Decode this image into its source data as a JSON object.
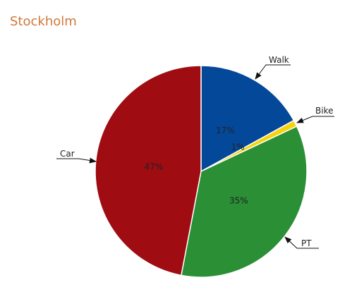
{
  "chart_data": {
    "type": "pie",
    "title": "Stockholm",
    "categories": [
      "Walk",
      "Bike",
      "PT",
      "Car"
    ],
    "values": [
      17,
      1,
      35,
      47
    ],
    "value_labels": [
      "17%",
      "1%",
      "35%",
      "47%"
    ],
    "colors": [
      "#04489a",
      "#f5d40e",
      "#2a8f35",
      "#9f0c12"
    ],
    "legend": "callouts"
  }
}
